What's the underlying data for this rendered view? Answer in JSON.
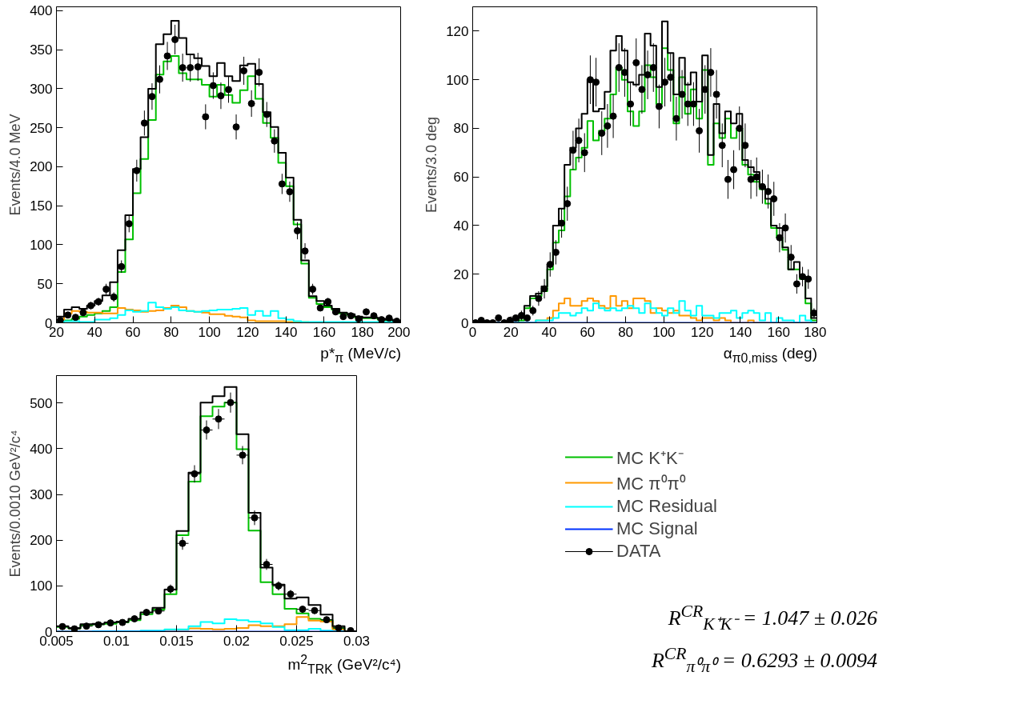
{
  "chart_data": [
    {
      "type": "histogram",
      "xlabel": "p*$_{π}$ (MeV/c)",
      "ylabel": "Events/4.0 MeV",
      "xlim": [
        20,
        200
      ],
      "ylim": [
        0,
        405
      ],
      "xticks": [
        20,
        40,
        60,
        80,
        100,
        120,
        140,
        160,
        180,
        200
      ],
      "yticks": [
        0,
        50,
        100,
        150,
        200,
        250,
        300,
        350,
        400
      ],
      "legend": false,
      "bins": [
        20,
        24,
        28,
        32,
        36,
        40,
        44,
        48,
        52,
        56,
        60,
        64,
        68,
        72,
        76,
        80,
        84,
        88,
        92,
        96,
        100,
        104,
        108,
        112,
        116,
        120,
        124,
        128,
        132,
        136,
        140,
        144,
        148,
        152,
        156,
        160,
        164,
        168,
        172,
        176,
        180,
        184,
        188,
        192,
        196,
        200
      ],
      "series": [
        {
          "color": "#00c000",
          "values": [
            2,
            3,
            5,
            8,
            10,
            12,
            15,
            20,
            65,
            107,
            166,
            210,
            260,
            318,
            335,
            342,
            320,
            312,
            312,
            305,
            290,
            305,
            292,
            282,
            298,
            316,
            287,
            256,
            237,
            205,
            175,
            126,
            76,
            32,
            24,
            20,
            17,
            12,
            10,
            7,
            6,
            6,
            4,
            3,
            1
          ]
        },
        {
          "color": "#ff9900",
          "values": [
            3,
            12,
            15,
            14,
            13,
            13,
            12,
            12,
            19,
            17,
            16,
            14,
            15,
            16,
            19,
            22,
            20,
            15,
            14,
            13,
            11,
            11,
            9,
            8,
            7,
            3,
            2,
            2,
            2,
            2,
            1,
            1,
            1,
            0,
            0,
            0,
            0,
            0,
            0,
            0,
            0,
            0,
            0,
            0,
            0
          ]
        },
        {
          "color": "#00ffff",
          "values": [
            1,
            2,
            2,
            1,
            1,
            4,
            4,
            6,
            10,
            16,
            14,
            15,
            26,
            20,
            18,
            20,
            16,
            15,
            14,
            15,
            16,
            17,
            17,
            18,
            19,
            10,
            15,
            9,
            15,
            6,
            4,
            2,
            1,
            1,
            1,
            1,
            1,
            1,
            1,
            1,
            1,
            1,
            1,
            1,
            1
          ]
        },
        {
          "color": "#000000",
          "values": [
            8,
            17,
            20,
            18,
            22,
            28,
            35,
            52,
            93,
            138,
            197,
            238,
            300,
            357,
            370,
            387,
            365,
            344,
            339,
            329,
            316,
            333,
            316,
            310,
            330,
            332,
            306,
            270,
            251,
            218,
            186,
            132,
            80,
            34,
            28,
            22,
            18,
            13,
            11,
            8,
            7,
            7,
            5,
            4,
            2
          ]
        },
        {
          "type": "scatter",
          "color": "#000000",
          "marker": "circle",
          "x": [
            22,
            26,
            30,
            34,
            38,
            42,
            46,
            50,
            54,
            58,
            62,
            66,
            70,
            74,
            78,
            82,
            86,
            90,
            94,
            98,
            102,
            106,
            110,
            114,
            118,
            122,
            126,
            130,
            134,
            138,
            142,
            146,
            150,
            154,
            158,
            162,
            166,
            170,
            174,
            178,
            182,
            186,
            190,
            194,
            198
          ],
          "values": [
            3,
            10,
            7,
            13,
            22,
            27,
            43,
            33,
            72,
            127,
            195,
            256,
            290,
            312,
            342,
            363,
            327,
            327,
            328,
            264,
            304,
            291,
            299,
            251,
            323,
            281,
            321,
            267,
            233,
            178,
            168,
            118,
            92,
            43,
            19,
            27,
            14,
            8,
            9,
            5,
            14,
            9,
            4,
            6,
            2
          ],
          "errors": [
            2,
            3,
            3,
            4,
            5,
            5,
            7,
            6,
            8,
            11,
            14,
            16,
            17,
            18,
            18,
            19,
            18,
            18,
            18,
            16,
            17,
            17,
            17,
            16,
            18,
            17,
            18,
            16,
            15,
            13,
            13,
            11,
            10,
            7,
            4,
            5,
            4,
            3,
            3,
            2,
            4,
            3,
            2,
            2,
            1
          ]
        }
      ]
    },
    {
      "type": "histogram",
      "xlabel": "α$_{π0,miss}$ (deg)",
      "ylabel": "Events/3.0 deg",
      "xlim": [
        0,
        180
      ],
      "ylim": [
        0,
        130
      ],
      "xticks": [
        0,
        20,
        40,
        60,
        80,
        100,
        120,
        140,
        160,
        180
      ],
      "yticks": [
        0,
        20,
        40,
        60,
        80,
        100,
        120
      ],
      "legend": false,
      "bins": [
        0,
        3,
        6,
        9,
        12,
        15,
        18,
        21,
        24,
        27,
        30,
        33,
        36,
        39,
        42,
        45,
        48,
        51,
        54,
        57,
        60,
        63,
        66,
        69,
        72,
        75,
        78,
        81,
        84,
        87,
        90,
        93,
        96,
        99,
        102,
        105,
        108,
        111,
        114,
        117,
        120,
        123,
        126,
        129,
        132,
        135,
        138,
        141,
        144,
        147,
        150,
        153,
        156,
        159,
        162,
        165,
        168,
        171,
        174,
        177,
        180
      ],
      "series": [
        {
          "color": "#00c000",
          "values": [
            0,
            0,
            0,
            0,
            0,
            0,
            0,
            0,
            1,
            6,
            10,
            11,
            13,
            22,
            33,
            38,
            52,
            63,
            68,
            72,
            83,
            75,
            79,
            84,
            94,
            105,
            100,
            87,
            81,
            87,
            106,
            101,
            90,
            113,
            104,
            82,
            101,
            86,
            96,
            84,
            104,
            65,
            82,
            76,
            84,
            76,
            80,
            65,
            61,
            58,
            55,
            49,
            39,
            35,
            30,
            22,
            22,
            18,
            8,
            1
          ]
        },
        {
          "color": "#ff9900",
          "values": [
            0,
            0,
            0,
            0,
            0,
            0,
            0,
            0,
            0,
            0,
            0,
            1,
            1,
            2,
            5,
            8,
            10,
            7,
            7,
            9,
            10,
            9,
            7,
            6,
            11,
            7,
            9,
            6,
            10,
            10,
            9,
            4,
            6,
            5,
            4,
            5,
            3,
            3,
            2,
            1,
            2,
            2,
            1,
            2,
            1,
            0,
            0,
            0,
            1,
            0,
            0,
            0,
            0,
            0,
            0,
            0,
            0,
            0,
            0,
            0
          ]
        },
        {
          "color": "#00ffff",
          "values": [
            0,
            0,
            0,
            0,
            0,
            0,
            0,
            0,
            0,
            0,
            0,
            1,
            1,
            1,
            2,
            4,
            4,
            3,
            4,
            6,
            5,
            8,
            6,
            5,
            6,
            5,
            6,
            7,
            6,
            4,
            8,
            6,
            4,
            3,
            6,
            4,
            9,
            5,
            3,
            7,
            3,
            3,
            2,
            4,
            4,
            5,
            2,
            4,
            5,
            4,
            1,
            4,
            0,
            2,
            1,
            1,
            0,
            3,
            1,
            0
          ]
        },
        {
          "color": "#0033ff",
          "values": [
            0,
            0,
            0,
            0,
            0,
            0,
            0,
            0,
            0,
            0,
            0,
            0,
            0,
            0,
            0,
            0,
            0,
            0,
            0,
            0,
            0,
            0,
            0,
            0,
            0,
            0,
            0,
            0,
            0,
            0,
            0,
            0,
            0,
            0,
            0,
            0,
            0,
            0,
            0,
            0,
            0,
            0,
            0,
            0,
            0,
            0,
            0,
            0,
            0,
            0,
            0,
            0,
            0,
            0,
            0,
            0,
            0,
            0,
            0,
            0
          ]
        },
        {
          "color": "#000000",
          "values": [
            0,
            0,
            0,
            0,
            0,
            0,
            0,
            1,
            2,
            7,
            11,
            12,
            15,
            24,
            40,
            47,
            65,
            72,
            80,
            86,
            100,
            87,
            88,
            95,
            112,
            118,
            112,
            99,
            98,
            102,
            119,
            114,
            97,
            124,
            111,
            94,
            109,
            98,
            103,
            91,
            110,
            69,
            90,
            78,
            87,
            82,
            86,
            67,
            64,
            62,
            56,
            51,
            40,
            39,
            31,
            22,
            25,
            19,
            10,
            2
          ]
        },
        {
          "type": "scatter",
          "color": "#000000",
          "marker": "circle",
          "x": [
            1.5,
            4.5,
            7.5,
            10.5,
            13.5,
            16.5,
            19.5,
            22.5,
            25.5,
            28.5,
            31.5,
            34.5,
            37.5,
            40.5,
            43.5,
            46.5,
            49.5,
            52.5,
            55.5,
            58.5,
            61.5,
            64.5,
            67.5,
            70.5,
            73.5,
            76.5,
            79.5,
            82.5,
            85.5,
            88.5,
            91.5,
            94.5,
            97.5,
            100.5,
            103.5,
            106.5,
            109.5,
            112.5,
            115.5,
            118.5,
            121.5,
            124.5,
            127.5,
            130.5,
            133.5,
            136.5,
            139.5,
            142.5,
            145.5,
            148.5,
            151.5,
            154.5,
            157.5,
            160.5,
            163.5,
            166.5,
            169.5,
            172.5,
            175.5,
            178.5
          ],
          "values": [
            0,
            1,
            0,
            0,
            2,
            0,
            1,
            2,
            3,
            2,
            5,
            10,
            14,
            24,
            29,
            41,
            49,
            71,
            75,
            70,
            100,
            99,
            78,
            81,
            85,
            105,
            103,
            90,
            107,
            96,
            102,
            105,
            89,
            99,
            101,
            84,
            94,
            90,
            90,
            79,
            96,
            103,
            94,
            73,
            59,
            63,
            80,
            73,
            59,
            60,
            56,
            54,
            51,
            35,
            39,
            27,
            16,
            19,
            18,
            4
          ],
          "errors": [
            1,
            1,
            1,
            1,
            1,
            1,
            1,
            1,
            2,
            1,
            2,
            3,
            4,
            5,
            5,
            6,
            7,
            8,
            9,
            8,
            10,
            10,
            9,
            9,
            9,
            10,
            10,
            9,
            10,
            10,
            10,
            10,
            9,
            10,
            10,
            9,
            10,
            9,
            9,
            9,
            10,
            10,
            10,
            9,
            8,
            8,
            9,
            9,
            8,
            8,
            7,
            7,
            7,
            6,
            6,
            5,
            4,
            4,
            4,
            2
          ]
        }
      ]
    },
    {
      "type": "histogram",
      "xlabel": "m$^{2}$$_{TRK}$ (GeV²/c⁴)",
      "ylabel": "Events/0.0010 GeV²/c⁴",
      "xlim": [
        0.005,
        0.03
      ],
      "ylim": [
        0,
        560
      ],
      "xticks": [
        0.005,
        0.01,
        0.015,
        0.02,
        0.025,
        0.03
      ],
      "yticks": [
        0,
        100,
        200,
        300,
        400,
        500
      ],
      "legend": "right",
      "annotations": [
        "R$^{CR}$$_{K⁺K⁻}$ = 1.047 ± 0.026",
        "R$^{CR}$$_{π⁰π⁰}$ = 0.6293 ± 0.0094"
      ],
      "bins": [
        0.005,
        0.006,
        0.007,
        0.008,
        0.009,
        0.01,
        0.011,
        0.012,
        0.013,
        0.014,
        0.015,
        0.016,
        0.017,
        0.018,
        0.019,
        0.02,
        0.021,
        0.022,
        0.023,
        0.024,
        0.025,
        0.026,
        0.027,
        0.028,
        0.029,
        0.03
      ],
      "series": [
        {
          "name": "MC K⁺K⁻",
          "color": "#00c000",
          "values": [
            10,
            7,
            14,
            16,
            17,
            20,
            25,
            38,
            48,
            82,
            211,
            328,
            471,
            492,
            501,
            399,
            221,
            108,
            82,
            50,
            40,
            28,
            25,
            8,
            0
          ]
        },
        {
          "name": "MC π⁰π⁰",
          "color": "#ff9900",
          "values": [
            1,
            1,
            0,
            0,
            0,
            0,
            0,
            0,
            0,
            4,
            4,
            7,
            6,
            5,
            6,
            8,
            14,
            12,
            12,
            16,
            32,
            24,
            22,
            4,
            0
          ]
        },
        {
          "name": "MC Residual",
          "color": "#00ffff",
          "values": [
            0,
            0,
            0,
            1,
            1,
            1,
            1,
            2,
            2,
            5,
            5,
            12,
            21,
            18,
            27,
            25,
            22,
            18,
            10,
            3,
            3,
            6,
            2,
            1,
            0
          ]
        },
        {
          "name": "MC Signal",
          "color": "#0033ff",
          "values": [
            0,
            0,
            0,
            0,
            0,
            0,
            0,
            0,
            0,
            0,
            0,
            0,
            0,
            0,
            0,
            0,
            0,
            0,
            0,
            0,
            0,
            0,
            0,
            0,
            0
          ]
        },
        {
          "color": "#000000",
          "values": [
            12,
            8,
            16,
            17,
            20,
            22,
            28,
            42,
            52,
            92,
            220,
            348,
            501,
            515,
            535,
            432,
            260,
            140,
            103,
            72,
            75,
            58,
            37,
            12,
            1
          ]
        },
        {
          "name": "DATA",
          "type": "scatter",
          "color": "#000000",
          "marker": "circle",
          "x": [
            0.0055,
            0.0065,
            0.0075,
            0.0085,
            0.0095,
            0.0105,
            0.0115,
            0.0125,
            0.0135,
            0.0145,
            0.0155,
            0.0165,
            0.0175,
            0.0185,
            0.0195,
            0.0205,
            0.0215,
            0.0225,
            0.0235,
            0.0245,
            0.0255,
            0.0265,
            0.0275,
            0.0285,
            0.0295
          ],
          "values": [
            11,
            6,
            12,
            15,
            19,
            20,
            28,
            42,
            45,
            93,
            193,
            345,
            441,
            465,
            501,
            386,
            249,
            147,
            100,
            82,
            49,
            46,
            26,
            8,
            2
          ],
          "errors": [
            3,
            2,
            3,
            4,
            4,
            4,
            5,
            6,
            7,
            10,
            14,
            19,
            21,
            22,
            22,
            20,
            16,
            12,
            10,
            9,
            7,
            7,
            5,
            3,
            null
          ],
          "xerrors": [
            0.0005,
            0.0005,
            0.0005,
            0.0005,
            0.0005,
            0.0005,
            0.0005,
            0.0005,
            0.0005,
            0.0005,
            0.0005,
            0.0005,
            0.0005,
            0.0005,
            0.0005,
            0.0005,
            0.0005,
            0.0005,
            0.0005,
            0.0005,
            0.0005,
            0.0005,
            0.0005,
            0.0005,
            null
          ]
        }
      ]
    }
  ]
}
